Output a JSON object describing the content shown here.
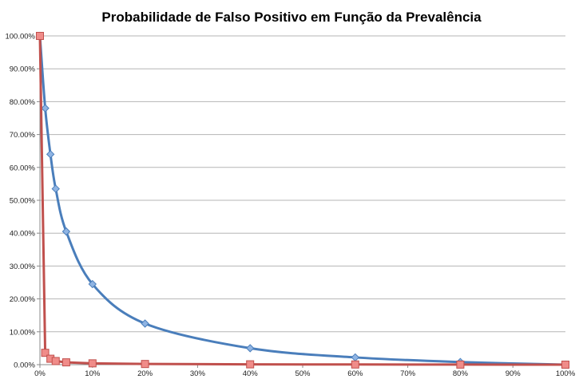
{
  "chart_data": {
    "type": "scatter",
    "title": "Probabilidade de Falso Positivo em Função da Prevalência",
    "xlabel": "",
    "ylabel": "",
    "xlim": [
      0,
      1
    ],
    "ylim": [
      0,
      1
    ],
    "x_ticks": [
      "0%",
      "10%",
      "20%",
      "30%",
      "40%",
      "50%",
      "60%",
      "70%",
      "80%",
      "90%",
      "100%"
    ],
    "y_ticks": [
      "0.00%",
      "10.00%",
      "20.00%",
      "30.00%",
      "40.00%",
      "50.00%",
      "60.00%",
      "70.00%",
      "80.00%",
      "90.00%",
      "100.00%"
    ],
    "grid": true,
    "legend": "none",
    "series": [
      {
        "color": "#4a7ebb",
        "marker": "diamond",
        "smooth": true,
        "x": [
          0,
          0.01,
          0.02,
          0.03,
          0.05,
          0.1,
          0.2,
          0.4,
          0.6,
          0.8,
          1.0
        ],
        "y": [
          1.0,
          0.78,
          0.64,
          0.535,
          0.405,
          0.245,
          0.125,
          0.05,
          0.022,
          0.008,
          0.0
        ]
      },
      {
        "color": "#c0504d",
        "marker": "square",
        "smooth": false,
        "x": [
          0,
          0.01,
          0.02,
          0.03,
          0.05,
          0.1,
          0.2,
          0.4,
          0.6,
          0.8,
          1.0
        ],
        "y": [
          1.0,
          0.036,
          0.018,
          0.011,
          0.007,
          0.004,
          0.002,
          0.001,
          0.0005,
          0.0002,
          0.0
        ]
      }
    ]
  }
}
